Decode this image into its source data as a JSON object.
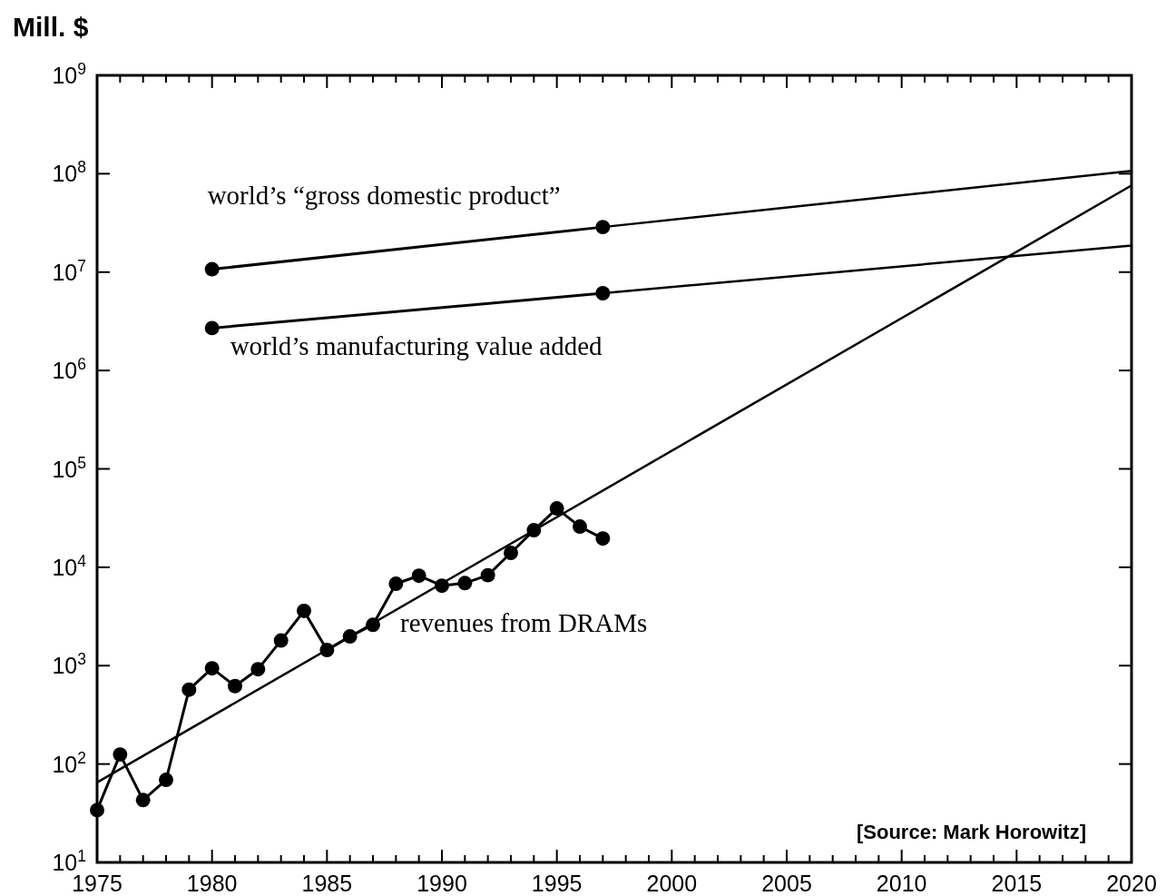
{
  "chart_data": {
    "type": "line",
    "log": "y",
    "ylabel": "Mill. $",
    "xlim": [
      1975,
      2020
    ],
    "ylim": [
      10,
      1000000000
    ],
    "xticks": [
      1975,
      {
        "value": 1976,
        "label": null
      },
      {
        "value": 1977,
        "label": null
      },
      {
        "value": 1978,
        "label": null
      },
      {
        "value": 1979,
        "label": null
      },
      1980,
      {
        "value": 1981,
        "label": null
      },
      {
        "value": 1982,
        "label": null
      },
      {
        "value": 1983,
        "label": null
      },
      {
        "value": 1984,
        "label": null
      },
      1985,
      {
        "value": 1986,
        "label": null
      },
      {
        "value": 1987,
        "label": null
      },
      {
        "value": 1988,
        "label": null
      },
      {
        "value": 1989,
        "label": null
      },
      1990,
      {
        "value": 1991,
        "label": null
      },
      {
        "value": 1992,
        "label": null
      },
      {
        "value": 1993,
        "label": null
      },
      {
        "value": 1994,
        "label": null
      },
      1995,
      {
        "value": 1996,
        "label": null
      },
      {
        "value": 1997,
        "label": null
      },
      {
        "value": 1998,
        "label": null
      },
      {
        "value": 1999,
        "label": null
      },
      2000,
      {
        "value": 2001,
        "label": null
      },
      {
        "value": 2002,
        "label": null
      },
      {
        "value": 2003,
        "label": null
      },
      {
        "value": 2004,
        "label": null
      },
      2005,
      {
        "value": 2006,
        "label": null
      },
      {
        "value": 2007,
        "label": null
      },
      {
        "value": 2008,
        "label": null
      },
      {
        "value": 2009,
        "label": null
      },
      2010,
      {
        "value": 2011,
        "label": null
      },
      {
        "value": 2012,
        "label": null
      },
      {
        "value": 2013,
        "label": null
      },
      {
        "value": 2014,
        "label": null
      },
      2015,
      {
        "value": 2016,
        "label": null
      },
      {
        "value": 2017,
        "label": null
      },
      {
        "value": 2018,
        "label": null
      },
      {
        "value": 2019,
        "label": null
      },
      2020
    ],
    "yticks": [
      {
        "value": 10,
        "label": "10$^{1}$"
      },
      {
        "value": 100,
        "label": "10$^{2}$"
      },
      {
        "value": 1000,
        "label": "10$^{3}$"
      },
      {
        "value": 10000,
        "label": "10$^{4}$"
      },
      {
        "value": 100000,
        "label": "10$^{5}$"
      },
      {
        "value": 1000000,
        "label": "10$^{6}$"
      },
      {
        "value": 10000000,
        "label": "10$^{7}$"
      },
      {
        "value": 100000000,
        "label": "10$^{8}$"
      },
      {
        "value": 1000000000,
        "label": "10$^{9}$"
      }
    ],
    "grid": false,
    "line_style": "solid",
    "series": [
      {
        "name": "world’s “gross domestic product”",
        "color": "#000000",
        "marker": "circle",
        "x": [
          1980,
          1997
        ],
        "values": [
          10700000,
          28700000
        ]
      },
      {
        "color": "#000000",
        "marker": "none",
        "x": [
          1997,
          2020
        ],
        "values": [
          28700000,
          107000000
        ]
      },
      {
        "name": "world’s manufacturing value added",
        "color": "#000000",
        "marker": "circle",
        "x": [
          1980,
          1997
        ],
        "values": [
          2700000,
          6100000
        ]
      },
      {
        "color": "#000000",
        "marker": "none",
        "x": [
          1997,
          2020
        ],
        "values": [
          6100000,
          18600000
        ]
      },
      {
        "name": "revenues from DRAMs",
        "color": "#000000",
        "marker": "circle",
        "x": [
          1975,
          1976,
          1977,
          1978,
          1979,
          1980,
          1981,
          1982,
          1983,
          1984,
          1985,
          1986,
          1987,
          1988,
          1989,
          1990,
          1991,
          1992,
          1993,
          1994,
          1995,
          1996,
          1997
        ],
        "values": [
          34,
          125,
          43,
          69,
          570,
          940,
          620,
          920,
          1800,
          3600,
          1440,
          1980,
          2600,
          6800,
          8200,
          6500,
          6900,
          8300,
          14000,
          23800,
          39600,
          25900,
          19600
        ]
      },
      {
        "color": "#000000",
        "marker": "none",
        "x": [
          1975,
          2020
        ],
        "values": [
          65,
          76000000
        ]
      }
    ],
    "annotations": [
      "[Source: Mark Horowitz]"
    ]
  }
}
